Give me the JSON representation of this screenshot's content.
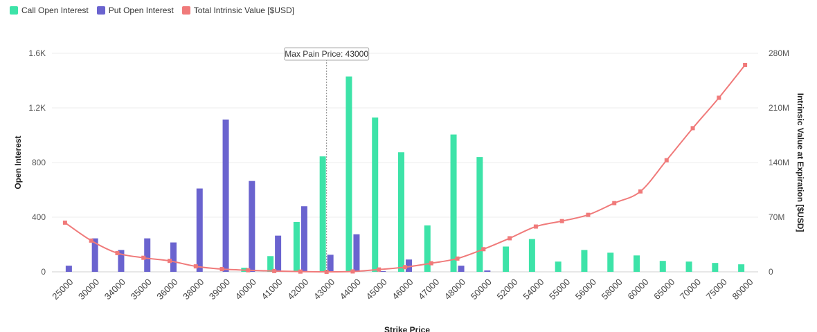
{
  "legend": {
    "call_label": "Call Open Interest",
    "put_label": "Put Open Interest",
    "total_label": "Total Intrinsic Value [$USD]"
  },
  "colors": {
    "call": "#3de3a8",
    "put": "#6a63cf",
    "total": "#f07a7a"
  },
  "chart_data": {
    "type": "bar",
    "xlabel": "Strike Price",
    "ylabel": "Open Interest",
    "y2label": "Intrinsic Value at Expiration [$USD]",
    "ylim": [
      0,
      1600
    ],
    "yticks": [
      "0",
      "400",
      "800",
      "1.2K",
      "1.6K"
    ],
    "y2lim": [
      0,
      280
    ],
    "y2ticks": [
      "0",
      "70M",
      "140M",
      "210M",
      "280M"
    ],
    "grid": true,
    "legend_position": "top-left",
    "annotation": "Max Pain Price: 43000",
    "max_pain_strike": "43000",
    "categories": [
      "25000",
      "30000",
      "34000",
      "35000",
      "36000",
      "38000",
      "39000",
      "40000",
      "41000",
      "42000",
      "43000",
      "44000",
      "45000",
      "46000",
      "47000",
      "48000",
      "50000",
      "52000",
      "54000",
      "55000",
      "56000",
      "58000",
      "60000",
      "65000",
      "70000",
      "75000",
      "80000"
    ],
    "series": [
      {
        "name": "Call Open Interest",
        "kind": "bar",
        "values": [
          0,
          0,
          0,
          0,
          0,
          0,
          0,
          30,
          115,
          365,
          845,
          1430,
          1130,
          875,
          340,
          1005,
          840,
          185,
          240,
          75,
          160,
          140,
          120,
          80,
          75,
          65,
          55
        ]
      },
      {
        "name": "Put Open Interest",
        "kind": "bar",
        "values": [
          45,
          245,
          160,
          245,
          215,
          610,
          1115,
          665,
          265,
          480,
          125,
          275,
          5,
          90,
          0,
          45,
          10,
          0,
          0,
          0,
          0,
          0,
          0,
          0,
          0,
          0,
          0
        ]
      },
      {
        "name": "Total Intrinsic Value [$USD]",
        "kind": "line",
        "unit": "M",
        "values": [
          63,
          40,
          24,
          18,
          14,
          7,
          3.5,
          2,
          1,
          0.3,
          0,
          0.5,
          3,
          6,
          11,
          17,
          29,
          43,
          58,
          65,
          73,
          88,
          103,
          143,
          184,
          223,
          265
        ]
      }
    ]
  }
}
